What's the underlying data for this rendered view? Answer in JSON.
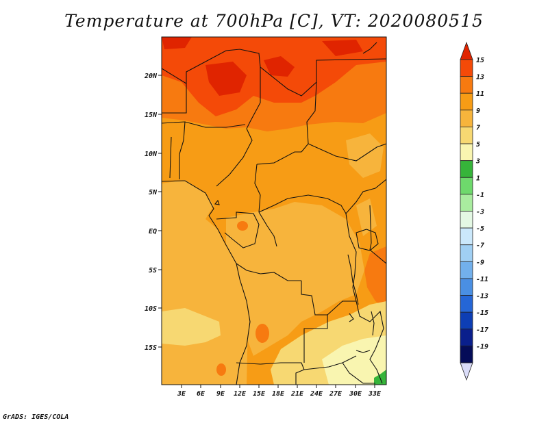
{
  "title": "Temperature at 700hPa [C], VT: 2020080515",
  "credit": "GrADS: IGES/COLA",
  "lat_labels": [
    "20N",
    "15N",
    "10N",
    "5N",
    "EQ",
    "5S",
    "10S",
    "15S"
  ],
  "lon_labels": [
    "3E",
    "6E",
    "9E",
    "12E",
    "15E",
    "18E",
    "21E",
    "24E",
    "27E",
    "30E",
    "33E"
  ],
  "legend": {
    "labels": [
      "15",
      "13",
      "11",
      "9",
      "7",
      "5",
      "3",
      "1",
      "-1",
      "-3",
      "-5",
      "-7",
      "-9",
      "-11",
      "-13",
      "-15",
      "-17",
      "-19"
    ],
    "colors": [
      "#e02400",
      "#f44a08",
      "#f77a10",
      "#f79c15",
      "#f7b43c",
      "#f7d872",
      "#f9f5b0",
      "#36b43a",
      "#6ed96c",
      "#a9ec9f",
      "#e4f8e4",
      "#cbe8fb",
      "#a0cff3",
      "#72b0ec",
      "#4a8fe3",
      "#2566d6",
      "#0d3eb4",
      "#0a1f8c",
      "#050c58"
    ],
    "top_color": "#e02400",
    "bottom_color": "#dadcf8"
  },
  "colors": {
    "ocean": "#f7b43c",
    "land": "#f79c15",
    "hot": "#f77a10",
    "hotter": "#f44a08",
    "hottest": "#e02400",
    "cool": "#f7d872",
    "coolest": "#f9f5b0",
    "green": "#36b43a",
    "border": "#111111"
  }
}
